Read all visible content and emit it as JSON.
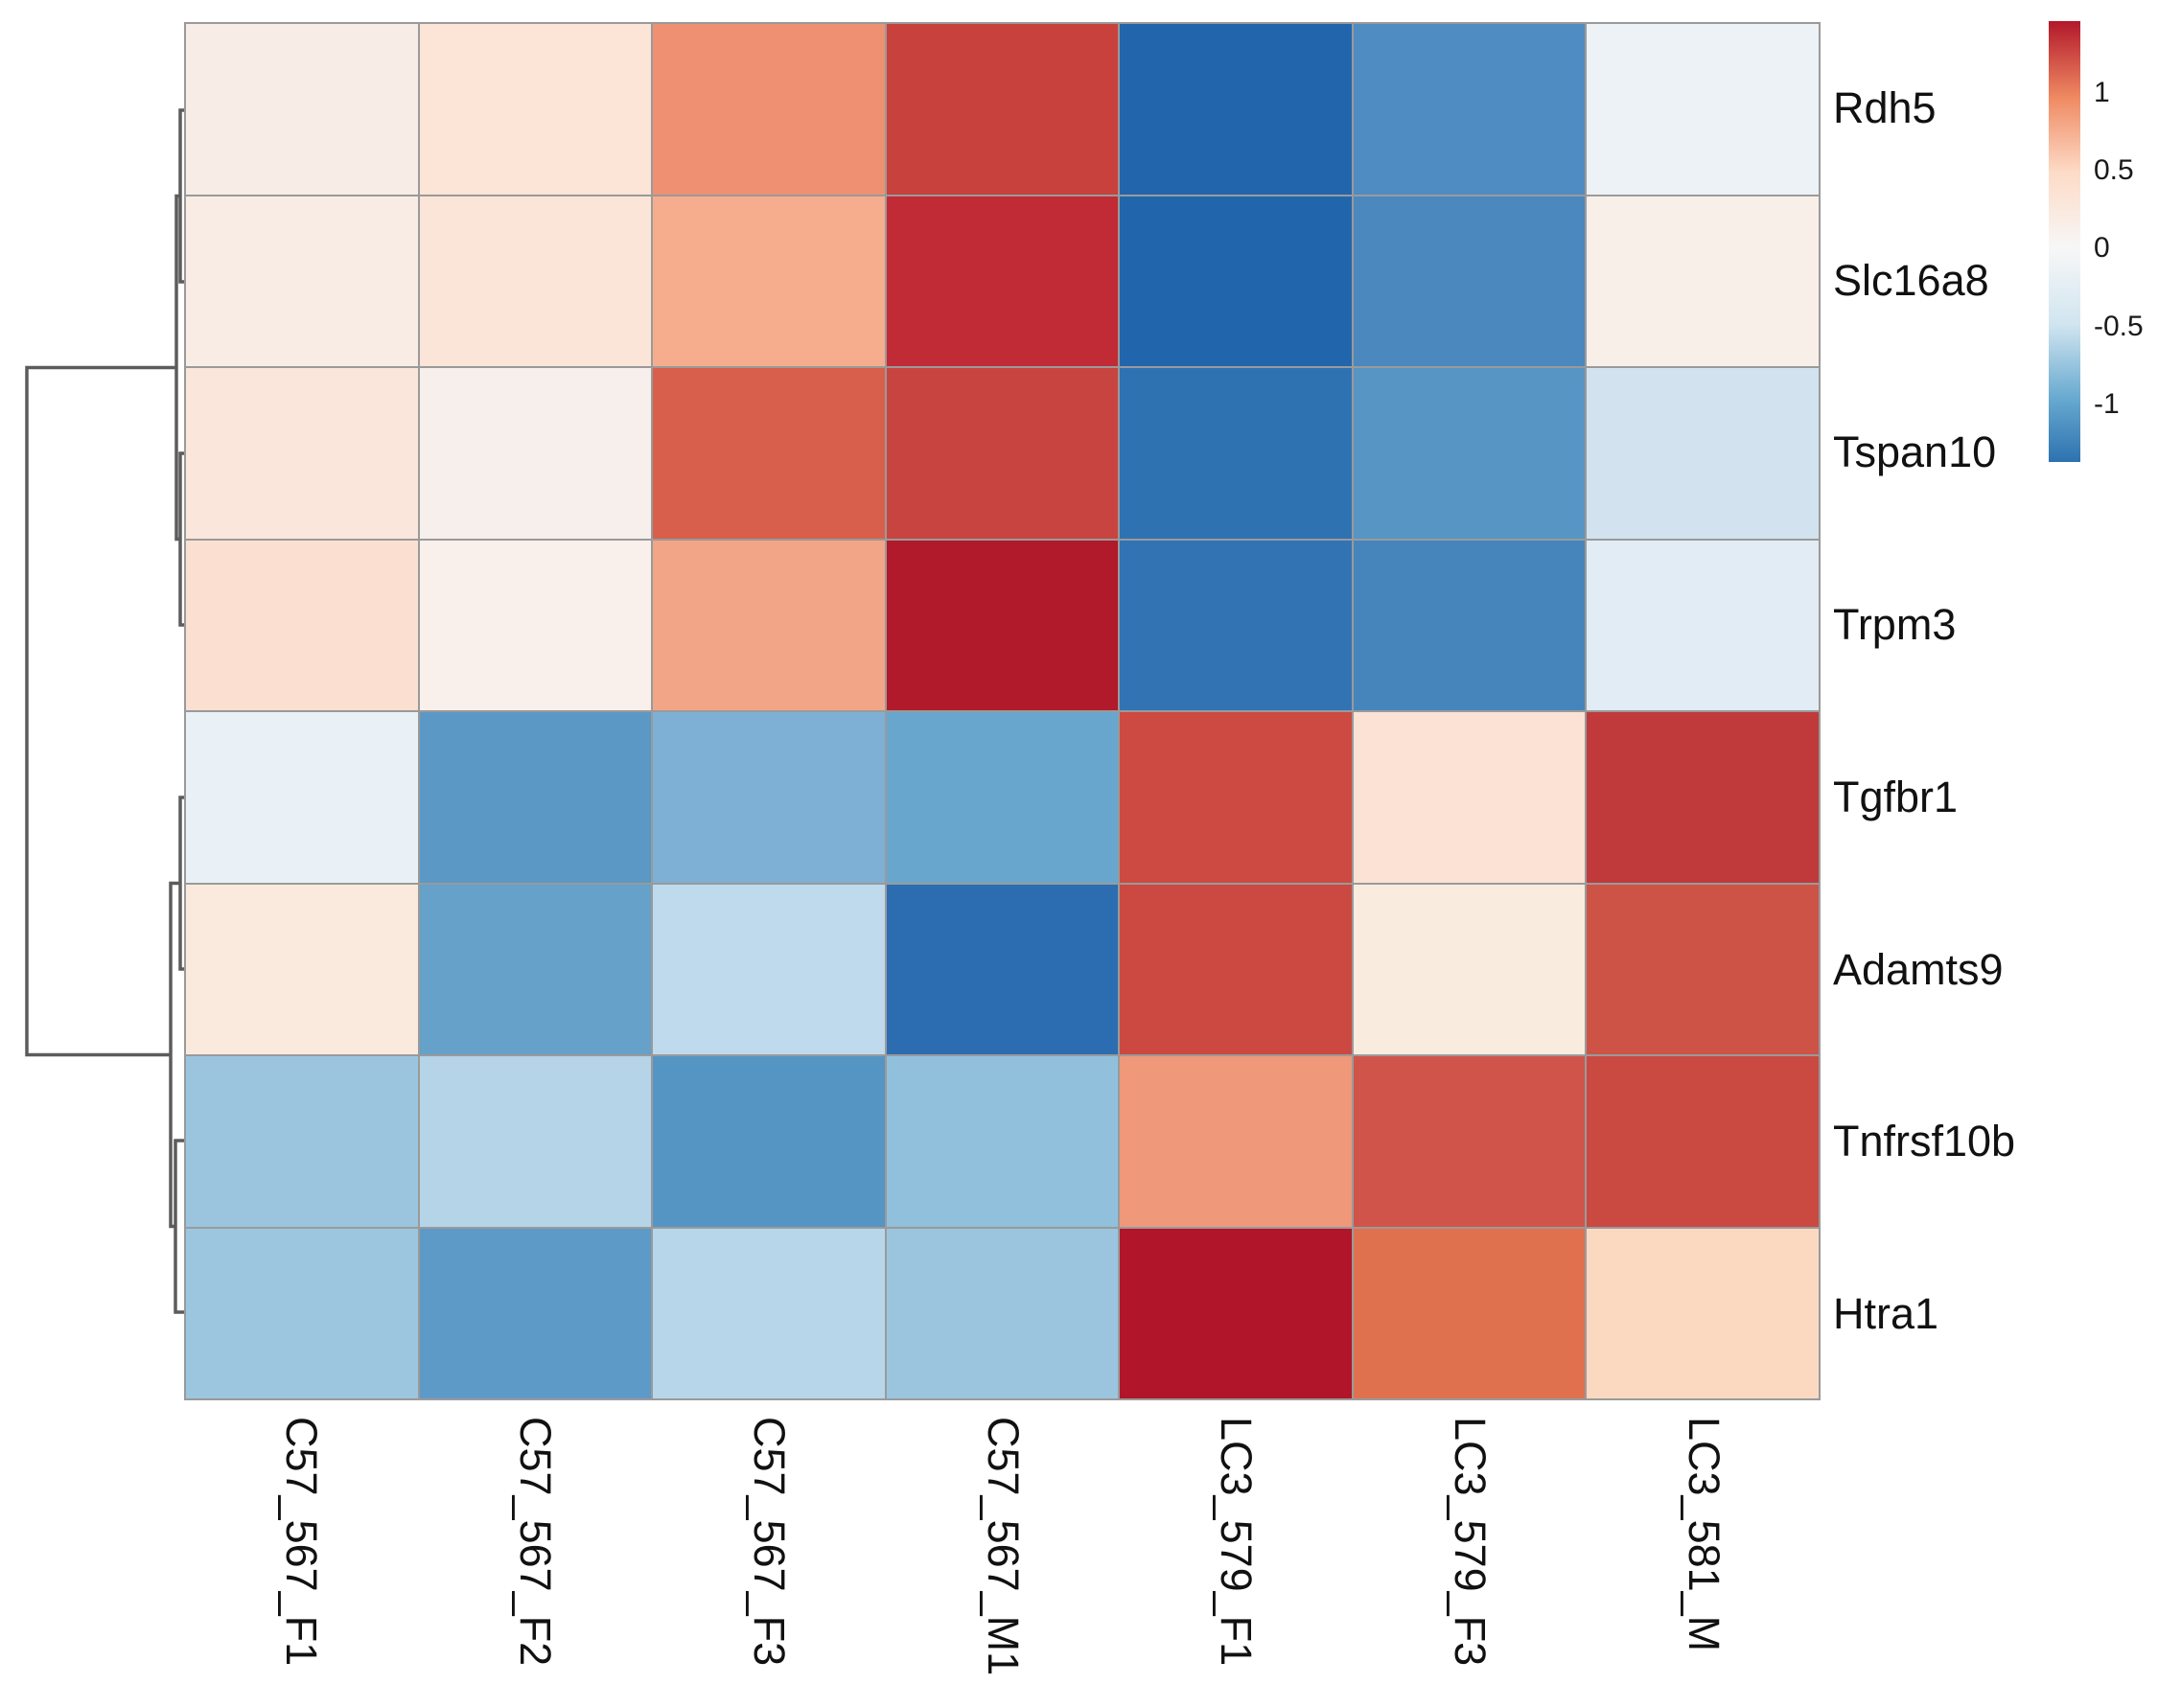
{
  "figure": {
    "kind": "clustered gene-expression heatmap with row dendrogram and color scale legend"
  },
  "chart_data": {
    "type": "heatmap",
    "title": "",
    "xlabel": "",
    "ylabel": "",
    "columns": [
      "C57_567_F1",
      "C57_567_F2",
      "C57_567_F3",
      "C57_567_M1",
      "LC3_579_F1",
      "LC3_579_F3",
      "LC3_581_M"
    ],
    "rows": [
      "Rdh5",
      "Slc16a8",
      "Tspan10",
      "Trpm3",
      "Tgfbr1",
      "Adamts9",
      "Tnfrsf10b",
      "Htra1"
    ],
    "values": [
      [
        0.2,
        0.35,
        0.95,
        1.25,
        -1.45,
        -1.1,
        -0.2
      ],
      [
        0.15,
        0.3,
        0.7,
        1.35,
        -1.45,
        -1.2,
        0.1
      ],
      [
        0.3,
        0.1,
        1.05,
        1.2,
        -1.3,
        -1.05,
        -0.45
      ],
      [
        0.35,
        0.1,
        0.75,
        1.45,
        -1.3,
        -1.2,
        -0.3
      ],
      [
        -0.15,
        -1.05,
        -0.8,
        -0.95,
        1.15,
        0.35,
        1.3
      ],
      [
        0.2,
        -0.95,
        -0.5,
        -1.4,
        1.15,
        0.2,
        1.05
      ],
      [
        -0.75,
        -0.55,
        -1.1,
        -0.85,
        0.85,
        1.1,
        1.15
      ],
      [
        -0.75,
        -1.05,
        -0.55,
        -0.75,
        1.45,
        0.9,
        0.5
      ]
    ],
    "cell_colors": [
      [
        "#f7ece6",
        "#fce4d6",
        "#ef9073",
        "#c8413c",
        "#2265ad",
        "#4f8cc1",
        "#edf2f6"
      ],
      [
        "#f8ece5",
        "#fbe5d8",
        "#f5ad8e",
        "#c12b36",
        "#2166ac",
        "#4a88be",
        "#f9efe9"
      ],
      [
        "#fae6da",
        "#f7efeb",
        "#d85f4b",
        "#c84440",
        "#2e72b2",
        "#5795c4",
        "#d2e3ef"
      ],
      [
        "#fbe0d1",
        "#f9f0ec",
        "#f3a588",
        "#b01a2b",
        "#3273b4",
        "#4585bc",
        "#e2ecf4"
      ],
      [
        "#eaf1f6",
        "#5b98c6",
        "#7db0d4",
        "#68a6ce",
        "#cc4a41",
        "#fbe2d4",
        "#c0393b"
      ],
      [
        "#faeade",
        "#65a1c9",
        "#bedaec",
        "#2c6db1",
        "#cb4941",
        "#faebdf",
        "#cd5347"
      ],
      [
        "#9bc5de",
        "#b5d4e7",
        "#5595c4",
        "#90c0dc",
        "#f0987a",
        "#d0544a",
        "#ca4a42"
      ],
      [
        "#9cc6df",
        "#5d9ac7",
        "#b8d6e9",
        "#9bc5de",
        "#b0152a",
        "#e0714f",
        "#fbd9c1"
      ]
    ],
    "grid": "on",
    "grid_color": "#9a9a9a",
    "legend_position": "top-right",
    "row_dendrogram": {
      "topology": "(((Rdh5,Slc16a8),(Tspan10,Trpm3)),((Tgfbr1,Adamts9),(Tnfrsf10b,Htra1)))",
      "line_color": "#5c5c5c"
    },
    "colorbar": {
      "ticks": [
        "1",
        "0.5",
        "0",
        "-0.5",
        "-1"
      ],
      "range_estimate": [
        -1.4,
        1.45
      ],
      "gradient_stops": [
        {
          "pos": 0,
          "color": "#b2182b"
        },
        {
          "pos": 17.4,
          "color": "#ef8a62"
        },
        {
          "pos": 34.3,
          "color": "#fddbc7"
        },
        {
          "pos": 51.5,
          "color": "#f7f7f7"
        },
        {
          "pos": 68.8,
          "color": "#d1e5f0"
        },
        {
          "pos": 85.7,
          "color": "#67a9cf"
        },
        {
          "pos": 100,
          "color": "#2d72b0"
        }
      ]
    }
  }
}
